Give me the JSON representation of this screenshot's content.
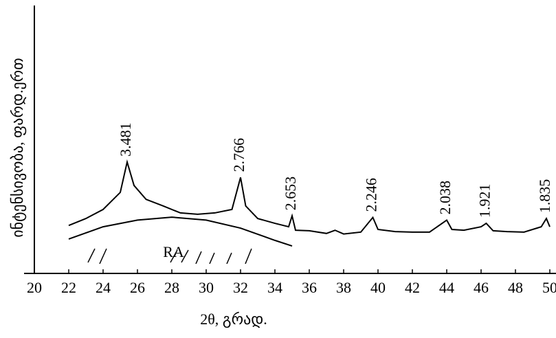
{
  "chart_data": {
    "type": "line",
    "x_label": "2θ, გრად.",
    "y_label": "ინტენსივობა, ფარდ.ერთ",
    "xlim": [
      20,
      50
    ],
    "xticks": [
      20,
      22,
      24,
      26,
      28,
      30,
      32,
      34,
      36,
      38,
      40,
      42,
      44,
      46,
      48,
      50
    ],
    "ylim": [
      0,
      100
    ],
    "series": [
      {
        "name": null,
        "color": "#000000",
        "x": [
          22,
          23,
          24,
          25,
          25.4,
          25.8,
          26.5,
          27.5,
          28.5,
          29.5,
          30.5,
          31.5,
          32.0,
          32.3,
          33,
          34,
          34.8,
          35.0,
          35.2,
          36,
          37,
          37.5,
          38,
          39,
          39.7,
          40,
          41,
          42,
          43,
          44,
          44.3,
          45,
          46,
          46.3,
          46.7,
          47.5,
          48.5,
          49.5,
          49.8,
          50
        ],
        "values": [
          18,
          20.6,
          24,
          30.4,
          41.8,
          33,
          27.8,
          25.3,
          22.7,
          22.2,
          22.7,
          24,
          36,
          25.3,
          20.6,
          18.8,
          17.5,
          21.6,
          16.2,
          16,
          15,
          16.2,
          14.8,
          15.5,
          21,
          16.5,
          15.7,
          15.5,
          15.5,
          20,
          16.5,
          16.2,
          17.5,
          18.8,
          16,
          15.7,
          15.5,
          17.5,
          20.6,
          17.5
        ]
      },
      {
        "name": "RA",
        "color": "#000000",
        "x": [
          22,
          24,
          26,
          28,
          30,
          32,
          34,
          35
        ],
        "values": [
          12.9,
          17.5,
          20,
          21.1,
          20,
          17,
          12.4,
          10.3
        ]
      }
    ],
    "annotations": [
      {
        "text": "3.481",
        "x": 25.4
      },
      {
        "text": "2.766",
        "x": 32.0
      },
      {
        "text": "2.653",
        "x": 35.0
      },
      {
        "text": "2.246",
        "x": 39.7
      },
      {
        "text": "2.038",
        "x": 44.0
      },
      {
        "text": "1.921",
        "x": 46.3
      },
      {
        "text": "1.835",
        "x": 49.8
      }
    ]
  }
}
